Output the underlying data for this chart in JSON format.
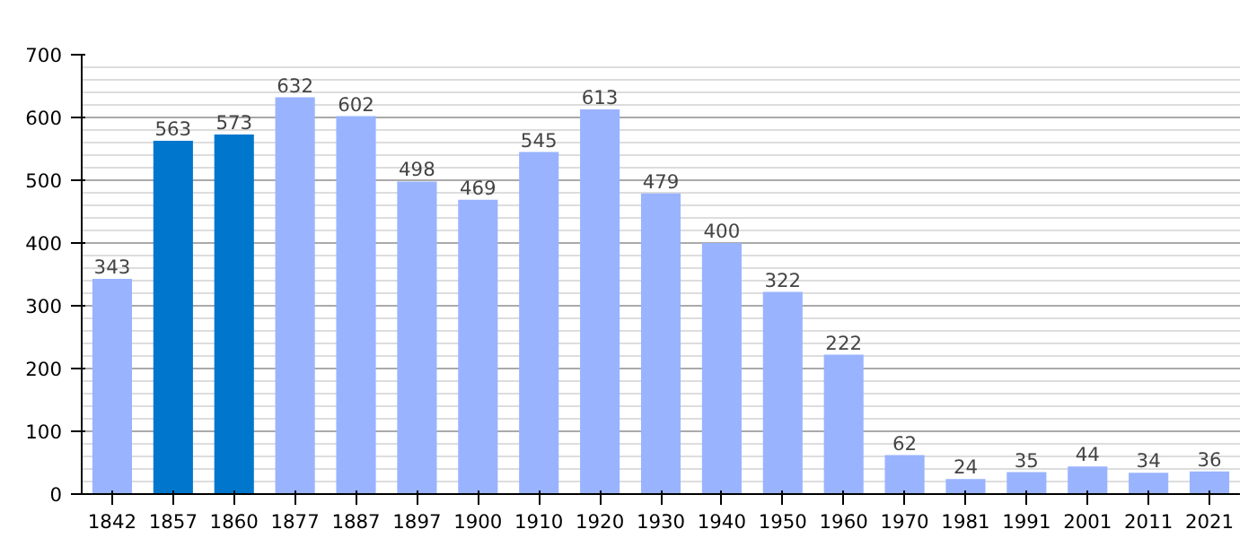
{
  "chart_data": {
    "type": "bar",
    "categories": [
      "1842",
      "1857",
      "1860",
      "1877",
      "1887",
      "1897",
      "1900",
      "1910",
      "1920",
      "1930",
      "1940",
      "1950",
      "1960",
      "1970",
      "1981",
      "1991",
      "2001",
      "2011",
      "2021"
    ],
    "values": [
      343,
      563,
      573,
      632,
      602,
      498,
      469,
      545,
      613,
      479,
      400,
      322,
      222,
      62,
      24,
      35,
      44,
      34,
      36
    ],
    "colors": [
      "#99b3ff",
      "#0077cc",
      "#0077cc",
      "#99b3ff",
      "#99b3ff",
      "#99b3ff",
      "#99b3ff",
      "#99b3ff",
      "#99b3ff",
      "#99b3ff",
      "#99b3ff",
      "#99b3ff",
      "#99b3ff",
      "#99b3ff",
      "#99b3ff",
      "#99b3ff",
      "#99b3ff",
      "#99b3ff",
      "#99b3ff"
    ],
    "ylim": [
      0,
      700
    ],
    "yticks": [
      0,
      100,
      200,
      300,
      400,
      500,
      600,
      700
    ],
    "grid": "y",
    "data_labels": true
  }
}
